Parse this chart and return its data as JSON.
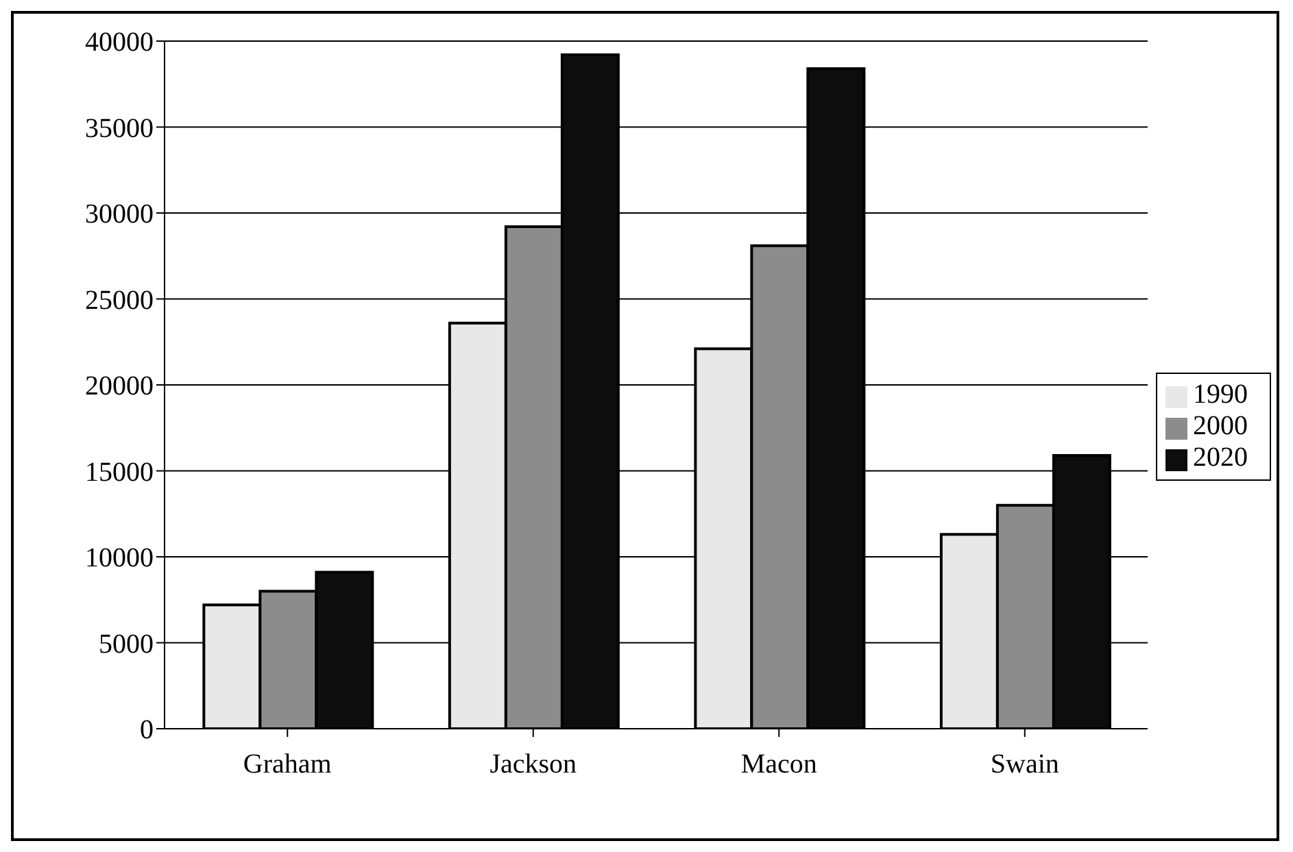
{
  "chart_data": {
    "type": "bar",
    "categories": [
      "Graham",
      "Jackson",
      "Macon",
      "Swain"
    ],
    "series": [
      {
        "name": "1990",
        "color": "#e8e8e8",
        "values": [
          7200,
          23600,
          22100,
          11300
        ]
      },
      {
        "name": "2000",
        "color": "#8c8c8c",
        "values": [
          8000,
          29200,
          28100,
          13000
        ]
      },
      {
        "name": "2020",
        "color": "#0d0d0d",
        "values": [
          9100,
          39200,
          38400,
          15900
        ]
      }
    ],
    "ylim": [
      0,
      40000
    ],
    "yticks": [
      0,
      5000,
      10000,
      15000,
      20000,
      25000,
      30000,
      35000,
      40000
    ],
    "grid": "y",
    "legend": "right"
  }
}
